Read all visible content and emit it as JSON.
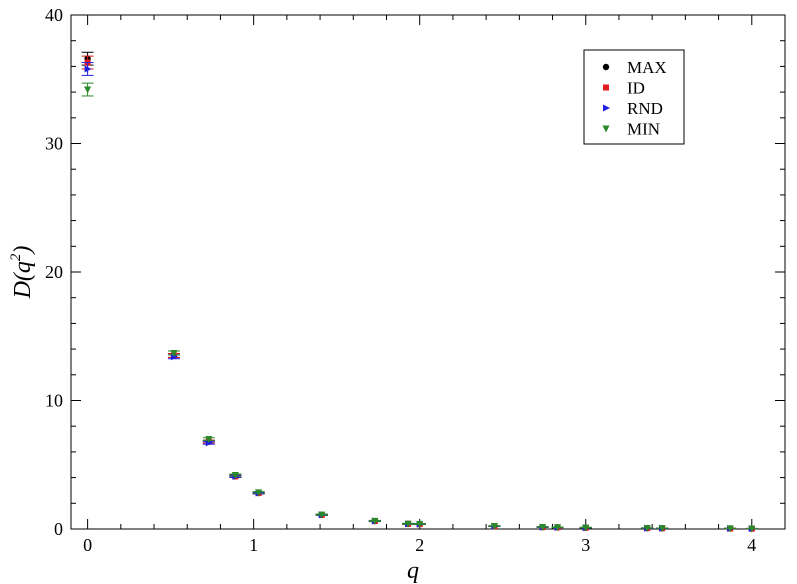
{
  "chart_data": {
    "type": "scatter",
    "title": "",
    "xlabel": "q",
    "ylabel_base": "D(q",
    "ylabel_sup": "2",
    "ylabel_end": ")",
    "xlim": [
      -0.1,
      4.2
    ],
    "ylim": [
      0,
      40
    ],
    "xticks": [
      0,
      1,
      2,
      3,
      4
    ],
    "xtick_labels": [
      "0",
      "1",
      "2",
      "3",
      "4"
    ],
    "yticks": [
      0,
      10,
      20,
      30,
      40
    ],
    "ytick_labels": [
      "0",
      "10",
      "20",
      "30",
      "40"
    ],
    "grid": false,
    "legend_position": "top-right",
    "series": [
      {
        "name": "MAX",
        "marker": "circle",
        "color": "#000000",
        "points": [
          {
            "x": 0,
            "y": 36.6,
            "err": 0.5
          },
          {
            "x": 0.52,
            "y": 13.5,
            "err": 0.15
          },
          {
            "x": 0.73,
            "y": 6.8,
            "err": 0.1
          },
          {
            "x": 0.89,
            "y": 4.1,
            "err": 0.08
          },
          {
            "x": 1.03,
            "y": 2.8,
            "err": 0.06
          },
          {
            "x": 1.41,
            "y": 1.1,
            "err": 0.05
          },
          {
            "x": 1.73,
            "y": 0.62,
            "err": 0.04
          },
          {
            "x": 1.93,
            "y": 0.4,
            "err": 0.03
          },
          {
            "x": 2.0,
            "y": 0.38,
            "err": 0.03
          },
          {
            "x": 2.45,
            "y": 0.22,
            "err": 0.02
          },
          {
            "x": 2.74,
            "y": 0.15,
            "err": 0.02
          },
          {
            "x": 2.83,
            "y": 0.13,
            "err": 0.02
          },
          {
            "x": 3.0,
            "y": 0.1,
            "err": 0.02
          },
          {
            "x": 3.37,
            "y": 0.07,
            "err": 0.01
          },
          {
            "x": 3.46,
            "y": 0.06,
            "err": 0.01
          },
          {
            "x": 3.87,
            "y": 0.04,
            "err": 0.01
          },
          {
            "x": 4.0,
            "y": 0.03,
            "err": 0.01
          }
        ]
      },
      {
        "name": "ID",
        "marker": "square",
        "color": "#e31a1c",
        "points": [
          {
            "x": 0,
            "y": 36.3,
            "err": 0.5
          },
          {
            "x": 0.52,
            "y": 13.5,
            "err": 0.15
          },
          {
            "x": 0.73,
            "y": 6.8,
            "err": 0.1
          },
          {
            "x": 0.89,
            "y": 4.1,
            "err": 0.08
          },
          {
            "x": 1.03,
            "y": 2.8,
            "err": 0.06
          },
          {
            "x": 1.41,
            "y": 1.1,
            "err": 0.05
          },
          {
            "x": 1.73,
            "y": 0.62,
            "err": 0.04
          },
          {
            "x": 1.93,
            "y": 0.4,
            "err": 0.03
          },
          {
            "x": 2.0,
            "y": 0.38,
            "err": 0.03
          },
          {
            "x": 2.45,
            "y": 0.22,
            "err": 0.02
          },
          {
            "x": 2.74,
            "y": 0.15,
            "err": 0.02
          },
          {
            "x": 2.83,
            "y": 0.13,
            "err": 0.02
          },
          {
            "x": 3.0,
            "y": 0.1,
            "err": 0.02
          },
          {
            "x": 3.37,
            "y": 0.07,
            "err": 0.01
          },
          {
            "x": 3.46,
            "y": 0.06,
            "err": 0.01
          },
          {
            "x": 3.87,
            "y": 0.04,
            "err": 0.01
          },
          {
            "x": 4.0,
            "y": 0.03,
            "err": 0.01
          }
        ]
      },
      {
        "name": "RND",
        "marker": "triangle-right",
        "color": "#1f1fe0",
        "points": [
          {
            "x": 0,
            "y": 35.8,
            "err": 0.5
          },
          {
            "x": 0.52,
            "y": 13.4,
            "err": 0.15
          },
          {
            "x": 0.73,
            "y": 6.7,
            "err": 0.1
          },
          {
            "x": 0.89,
            "y": 4.1,
            "err": 0.08
          },
          {
            "x": 1.03,
            "y": 2.8,
            "err": 0.06
          },
          {
            "x": 1.41,
            "y": 1.1,
            "err": 0.05
          },
          {
            "x": 1.73,
            "y": 0.62,
            "err": 0.04
          },
          {
            "x": 1.93,
            "y": 0.4,
            "err": 0.03
          },
          {
            "x": 2.0,
            "y": 0.38,
            "err": 0.03
          },
          {
            "x": 2.45,
            "y": 0.22,
            "err": 0.02
          },
          {
            "x": 2.74,
            "y": 0.15,
            "err": 0.02
          },
          {
            "x": 2.83,
            "y": 0.13,
            "err": 0.02
          },
          {
            "x": 3.0,
            "y": 0.1,
            "err": 0.02
          },
          {
            "x": 3.37,
            "y": 0.07,
            "err": 0.01
          },
          {
            "x": 3.46,
            "y": 0.06,
            "err": 0.01
          },
          {
            "x": 3.87,
            "y": 0.04,
            "err": 0.01
          },
          {
            "x": 4.0,
            "y": 0.03,
            "err": 0.01
          }
        ]
      },
      {
        "name": "MIN",
        "marker": "triangle-down",
        "color": "#2a8a2a",
        "points": [
          {
            "x": 0,
            "y": 34.2,
            "err": 0.5
          },
          {
            "x": 0.52,
            "y": 13.7,
            "err": 0.15
          },
          {
            "x": 0.73,
            "y": 7.0,
            "err": 0.1
          },
          {
            "x": 0.89,
            "y": 4.2,
            "err": 0.08
          },
          {
            "x": 1.03,
            "y": 2.85,
            "err": 0.06
          },
          {
            "x": 1.41,
            "y": 1.12,
            "err": 0.05
          },
          {
            "x": 1.73,
            "y": 0.63,
            "err": 0.04
          },
          {
            "x": 1.93,
            "y": 0.41,
            "err": 0.03
          },
          {
            "x": 2.0,
            "y": 0.39,
            "err": 0.03
          },
          {
            "x": 2.45,
            "y": 0.23,
            "err": 0.02
          },
          {
            "x": 2.74,
            "y": 0.16,
            "err": 0.02
          },
          {
            "x": 2.83,
            "y": 0.14,
            "err": 0.02
          },
          {
            "x": 3.0,
            "y": 0.11,
            "err": 0.02
          },
          {
            "x": 3.37,
            "y": 0.08,
            "err": 0.01
          },
          {
            "x": 3.46,
            "y": 0.07,
            "err": 0.01
          },
          {
            "x": 3.87,
            "y": 0.05,
            "err": 0.01
          },
          {
            "x": 4.0,
            "y": 0.04,
            "err": 0.01
          }
        ]
      }
    ]
  }
}
